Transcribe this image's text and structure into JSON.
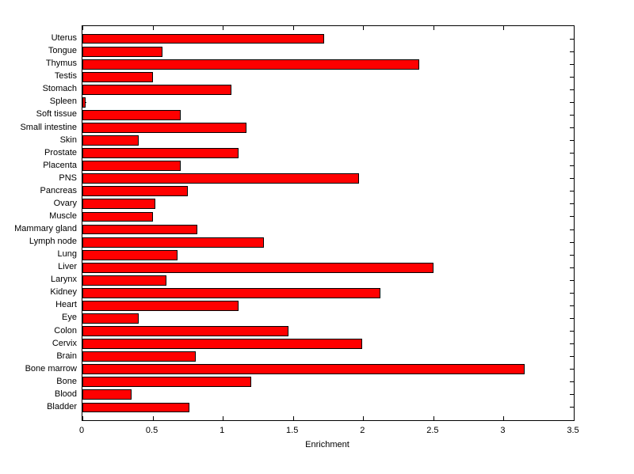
{
  "chart_data": {
    "type": "bar",
    "orientation": "horizontal",
    "title": "",
    "xlabel": "Enrichment",
    "ylabel": "",
    "xlim": [
      0,
      3.5
    ],
    "xticks": [
      0,
      0.5,
      1,
      1.5,
      2,
      2.5,
      3,
      3.5
    ],
    "xtick_labels": [
      "0",
      "0.5",
      "1",
      "1.5",
      "2",
      "2.5",
      "3",
      "3.5"
    ],
    "grid": false,
    "legend": false,
    "bar_color": "#FF0000",
    "bar_edge_color": "#000000",
    "categories": [
      "Uterus",
      "Tongue",
      "Thymus",
      "Testis",
      "Stomach",
      "Spleen",
      "Soft tissue",
      "Small intestine",
      "Skin",
      "Prostate",
      "Placenta",
      "PNS",
      "Pancreas",
      "Ovary",
      "Muscle",
      "Mammary gland",
      "Lymph node",
      "Lung",
      "Liver",
      "Larynx",
      "Kidney",
      "Heart",
      "Eye",
      "Colon",
      "Cervix",
      "Brain",
      "Bone marrow",
      "Bone",
      "Blood",
      "Bladder"
    ],
    "values": [
      1.72,
      0.57,
      2.4,
      0.5,
      1.06,
      0.02,
      0.7,
      1.17,
      0.4,
      1.11,
      0.7,
      1.97,
      0.75,
      0.52,
      0.5,
      0.82,
      1.29,
      0.68,
      2.5,
      0.6,
      2.12,
      1.11,
      0.4,
      1.47,
      1.99,
      0.81,
      3.15,
      1.2,
      0.35,
      0.76
    ]
  }
}
